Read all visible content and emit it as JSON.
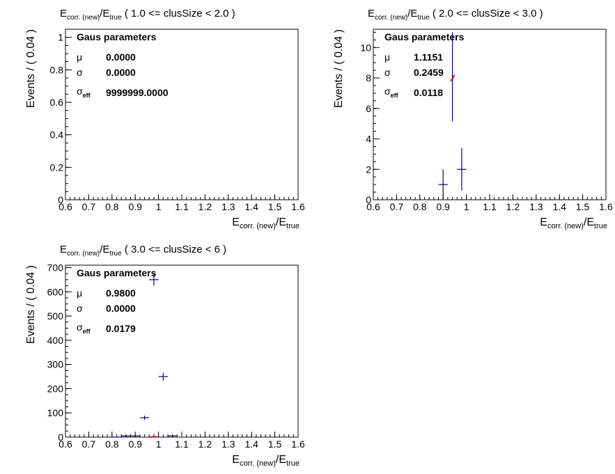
{
  "chart_data": [
    {
      "type": "scatter",
      "title": {
        "sym": "E",
        "sub1": "corr. (new)",
        "slash": "/",
        "sym2": "E",
        "sub2": "true",
        "range": " ( 1.0 <= clusSize < 2.0 )"
      },
      "xlabel": {
        "sym": "E",
        "sub1": "corr. (new)",
        "slash": "/",
        "sym2": "E",
        "sub2": "true"
      },
      "ylabel": "Events / ( 0.04 )",
      "xlim": [
        0.6,
        1.6
      ],
      "ylim": [
        0,
        1.05
      ],
      "xticks": [
        "0.6",
        "0.7",
        "0.8",
        "0.9",
        "1",
        "1.1",
        "1.2",
        "1.3",
        "1.4",
        "1.5",
        "1.6"
      ],
      "yticks": [
        {
          "v": 0,
          "label": "0"
        },
        {
          "v": 0.2,
          "label": "0.2"
        },
        {
          "v": 0.4,
          "label": "0.4"
        },
        {
          "v": 0.6,
          "label": "0.6"
        },
        {
          "v": 0.8,
          "label": "0.8"
        },
        {
          "v": 1.0,
          "label": "1"
        }
      ],
      "yminor_step": 0.05,
      "data_points": [],
      "fit_curve": [],
      "params": {
        "title": "Gaus parameters",
        "mu_symbol": "μ",
        "mu": "0.0000",
        "sigma_symbol": "σ",
        "sigma": "0.0000",
        "sigma_eff_symbol": "σ",
        "sigma_eff_sub": "eff",
        "sigma_eff": "9999999.0000"
      }
    },
    {
      "type": "scatter",
      "title": {
        "sym": "E",
        "sub1": "corr. (new)",
        "slash": "/",
        "sym2": "E",
        "sub2": "true",
        "range": " ( 2.0 <= clusSize < 3.0 )"
      },
      "xlabel": {
        "sym": "E",
        "sub1": "corr. (new)",
        "slash": "/",
        "sym2": "E",
        "sub2": "true"
      },
      "ylabel": "Events / ( 0.04 )",
      "xlim": [
        0.6,
        1.6
      ],
      "ylim": [
        0,
        11.2
      ],
      "xticks": [
        "0.6",
        "0.7",
        "0.8",
        "0.9",
        "1",
        "1.1",
        "1.2",
        "1.3",
        "1.4",
        "1.5",
        "1.6"
      ],
      "yticks": [
        {
          "v": 0,
          "label": "0"
        },
        {
          "v": 2,
          "label": "2"
        },
        {
          "v": 4,
          "label": "4"
        },
        {
          "v": 6,
          "label": "6"
        },
        {
          "v": 8,
          "label": "8"
        },
        {
          "v": 10,
          "label": "10"
        }
      ],
      "yminor_step": 0.5,
      "data_points": [
        {
          "x": 0.9,
          "y": 1,
          "xerr": 0.02,
          "yerr_lo": 1,
          "yerr_hi": 1
        },
        {
          "x": 0.94,
          "y": 8,
          "xerr": 0.0,
          "yerr_lo": 2.83,
          "yerr_hi": 3.0
        },
        {
          "x": 0.98,
          "y": 2,
          "xerr": 0.02,
          "yerr_lo": 1.4,
          "yerr_hi": 1.4
        }
      ],
      "fit_curve": [
        [
          0.932,
          7.8
        ],
        [
          0.94,
          7.95
        ],
        [
          0.948,
          8.2
        ]
      ],
      "params": {
        "title": "Gaus parameters",
        "mu_symbol": "μ",
        "mu": "1.1151",
        "sigma_symbol": "σ",
        "sigma": "0.2459",
        "sigma_eff_symbol": "σ",
        "sigma_eff_sub": "eff",
        "sigma_eff": "0.0118"
      }
    },
    {
      "type": "scatter",
      "title": {
        "sym": "E",
        "sub1": "corr. (new)",
        "slash": "/",
        "sym2": "E",
        "sub2": "true",
        "range": " ( 3.0 <= clusSize < 6 )"
      },
      "xlabel": {
        "sym": "E",
        "sub1": "corr. (new)",
        "slash": "/",
        "sym2": "E",
        "sub2": "true"
      },
      "ylabel": "Events / ( 0.04 )",
      "xlim": [
        0.6,
        1.6
      ],
      "ylim": [
        0,
        710
      ],
      "xticks": [
        "0.6",
        "0.7",
        "0.8",
        "0.9",
        "1",
        "1.1",
        "1.2",
        "1.3",
        "1.4",
        "1.5",
        "1.6"
      ],
      "yticks": [
        {
          "v": 0,
          "label": "0"
        },
        {
          "v": 100,
          "label": "100"
        },
        {
          "v": 200,
          "label": "200"
        },
        {
          "v": 300,
          "label": "300"
        },
        {
          "v": 400,
          "label": "400"
        },
        {
          "v": 500,
          "label": "500"
        },
        {
          "v": 600,
          "label": "600"
        },
        {
          "v": 700,
          "label": "700"
        }
      ],
      "yminor_step": 25,
      "data_points": [
        {
          "x": 0.82,
          "y": 0,
          "xerr": 0.02,
          "yerr_lo": 0,
          "yerr_hi": 0
        },
        {
          "x": 0.86,
          "y": 5,
          "xerr": 0.02,
          "yerr_lo": 2,
          "yerr_hi": 2
        },
        {
          "x": 0.9,
          "y": 5,
          "xerr": 0.02,
          "yerr_lo": 2,
          "yerr_hi": 2
        },
        {
          "x": 0.94,
          "y": 80,
          "xerr": 0.02,
          "yerr_lo": 9,
          "yerr_hi": 9
        },
        {
          "x": 0.98,
          "y": 650,
          "xerr": 0.02,
          "yerr_lo": 25,
          "yerr_hi": 25
        },
        {
          "x": 1.02,
          "y": 250,
          "xerr": 0.02,
          "yerr_lo": 16,
          "yerr_hi": 16
        },
        {
          "x": 1.06,
          "y": 5,
          "xerr": 0.02,
          "yerr_lo": 2,
          "yerr_hi": 2
        }
      ],
      "fit_curve": [
        [
          0.965,
          0
        ],
        [
          0.98,
          2
        ],
        [
          0.995,
          0
        ]
      ],
      "params": {
        "title": "Gaus parameters",
        "mu_symbol": "μ",
        "mu": "0.9800",
        "sigma_symbol": "σ",
        "sigma": "0.0000",
        "sigma_eff_symbol": "σ",
        "sigma_eff_sub": "eff",
        "sigma_eff": "0.0179"
      }
    }
  ],
  "colors": {
    "data": "#00008b",
    "fit": "#ff0000",
    "axis": "#000000"
  }
}
